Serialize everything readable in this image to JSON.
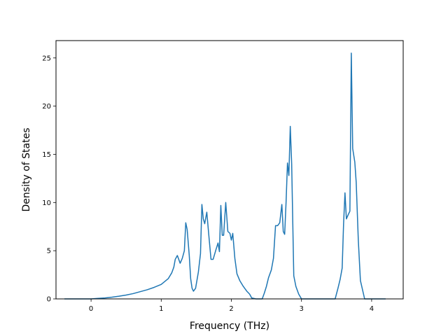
{
  "chart_data": {
    "type": "line",
    "title": "",
    "xlabel": "Frequency (THz)",
    "ylabel": "Density of States",
    "xlim": [
      -0.5,
      4.45
    ],
    "ylim": [
      0,
      26.8
    ],
    "xticks": [
      0,
      1,
      2,
      3,
      4
    ],
    "yticks": [
      0,
      5,
      10,
      15,
      20,
      25
    ],
    "grid": false,
    "legend": "none",
    "line_color": "#1f77b4",
    "series": [
      {
        "x": [
          -0.38,
          -0.2,
          0.0,
          0.1,
          0.2,
          0.3,
          0.4,
          0.5,
          0.6,
          0.7,
          0.8,
          0.9,
          1.0,
          1.05,
          1.1,
          1.15,
          1.18,
          1.2,
          1.23,
          1.27,
          1.3,
          1.33,
          1.35,
          1.37,
          1.4,
          1.42,
          1.44,
          1.46,
          1.49,
          1.53,
          1.56,
          1.58,
          1.6,
          1.62,
          1.65,
          1.68,
          1.71,
          1.74,
          1.78,
          1.81,
          1.83,
          1.85,
          1.87,
          1.89,
          1.92,
          1.95,
          1.98,
          2.0,
          2.02,
          2.05,
          2.08,
          2.12,
          2.17,
          2.22,
          2.26,
          2.29,
          2.35,
          2.4,
          2.44,
          2.47,
          2.5,
          2.53,
          2.57,
          2.6,
          2.63,
          2.66,
          2.69,
          2.72,
          2.74,
          2.76,
          2.78,
          2.8,
          2.82,
          2.84,
          2.86,
          2.89,
          2.92,
          2.96,
          3.0,
          3.2,
          3.4,
          3.48,
          3.52,
          3.55,
          3.58,
          3.6,
          3.62,
          3.64,
          3.67,
          3.69,
          3.71,
          3.73,
          3.76,
          3.78,
          3.81,
          3.84,
          3.9,
          4.0,
          4.1,
          4.2
        ],
        "y": [
          0.0,
          0.0,
          0.0,
          0.05,
          0.1,
          0.18,
          0.28,
          0.4,
          0.55,
          0.75,
          0.95,
          1.2,
          1.5,
          1.8,
          2.1,
          2.7,
          3.3,
          4.1,
          4.5,
          3.7,
          4.2,
          5.0,
          7.9,
          7.2,
          4.5,
          2.1,
          1.1,
          0.8,
          1.1,
          2.8,
          4.7,
          9.8,
          8.3,
          7.8,
          9.0,
          6.5,
          4.1,
          4.1,
          5.1,
          5.8,
          4.9,
          9.7,
          6.6,
          6.6,
          10.0,
          7.0,
          6.8,
          6.1,
          6.8,
          4.2,
          2.6,
          1.9,
          1.3,
          0.8,
          0.5,
          0.1,
          0.0,
          0.0,
          0.0,
          0.6,
          1.3,
          2.2,
          3.0,
          4.2,
          7.6,
          7.6,
          7.9,
          9.8,
          7.0,
          6.7,
          10.0,
          14.1,
          12.8,
          17.9,
          14.0,
          2.4,
          1.3,
          0.5,
          0.0,
          0.0,
          0.0,
          0.0,
          1.1,
          2.0,
          3.2,
          7.8,
          11.0,
          8.3,
          8.8,
          9.1,
          25.5,
          15.6,
          14.2,
          12.1,
          6.1,
          1.9,
          0.0,
          0.0,
          0.0,
          0.0
        ]
      }
    ]
  }
}
